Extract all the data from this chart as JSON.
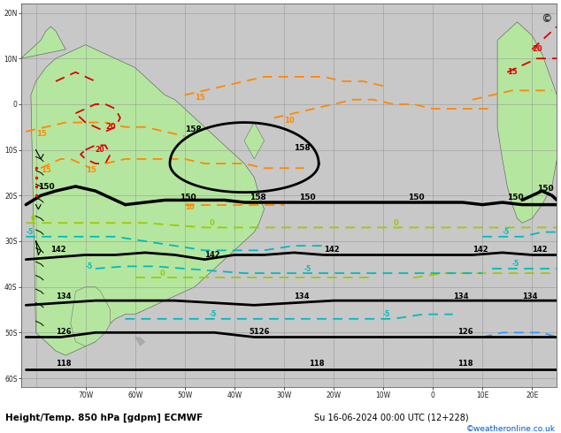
{
  "title": "Height/Temp. 850 hPa [gdpm] ECMWF",
  "subtitle": "Su 16-06-2024 00:00 UTC (12+228)",
  "credit": "©weatheronline.co.uk",
  "bg_land_color": "#b5e6a0",
  "bg_ocean_color": "#c8c8c8",
  "grid_color": "#888888",
  "border_color": "#555555",
  "title_color": "#000000",
  "credit_color": "#0055cc",
  "figsize": [
    6.34,
    4.9
  ],
  "dpi": 100,
  "height_contour_color": "#000000",
  "height_contour_lw": 2.0,
  "temp_red_color": "#dd0000",
  "temp_orange_color": "#ff8800",
  "temp_yellow_green_color": "#99cc00",
  "temp_cyan_color": "#00bbbb",
  "temp_blue_color": "#3399ff",
  "temp_lw": 1.3,
  "xlim": [
    -83,
    25
  ],
  "ylim": [
    -62,
    22
  ],
  "lon_ticks": [
    -70,
    -60,
    -50,
    -40,
    -30,
    -20,
    -10,
    0,
    10,
    20
  ],
  "lat_ticks": [
    -60,
    -50,
    -40,
    -30,
    -20,
    -10,
    0,
    10,
    20
  ],
  "lon_labels": [
    "70W",
    "60W",
    "50W",
    "40W",
    "30W",
    "20W",
    "10W",
    "0",
    "10E",
    "20E"
  ],
  "lat_labels": [
    "60S",
    "50S",
    "40S",
    "30S",
    "20S",
    "10S",
    "0",
    "10N",
    "20N"
  ]
}
